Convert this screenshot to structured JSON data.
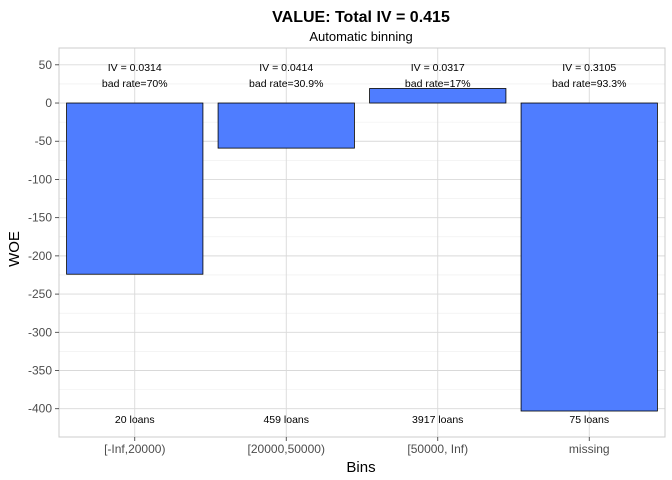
{
  "chart_data": {
    "type": "bar",
    "title": "VALUE: Total IV = 0.415",
    "subtitle": "Automatic binning",
    "xlabel": "Bins",
    "ylabel": "WOE",
    "categories": [
      "[-Inf,20000)",
      "[20000,50000)",
      "[50000, Inf)",
      "missing"
    ],
    "values": [
      -224,
      -59,
      19,
      -403
    ],
    "iv_labels": [
      "IV = 0.0314",
      "IV = 0.0414",
      "IV = 0.0317",
      "IV = 0.3105"
    ],
    "bad_rate_labels": [
      "bad rate=70%",
      "bad rate=30.9%",
      "bad rate=17%",
      "bad rate=93.3%"
    ],
    "count_labels": [
      "20 loans",
      "459 loans",
      "3917 loans",
      "75 loans"
    ],
    "yticks": [
      50,
      0,
      -50,
      -100,
      -150,
      -200,
      -250,
      -300,
      -350,
      -400
    ],
    "ylim": [
      -437,
      72
    ],
    "grid": true,
    "bar_color": "#4f7dff",
    "bar_outline": "#000000"
  }
}
